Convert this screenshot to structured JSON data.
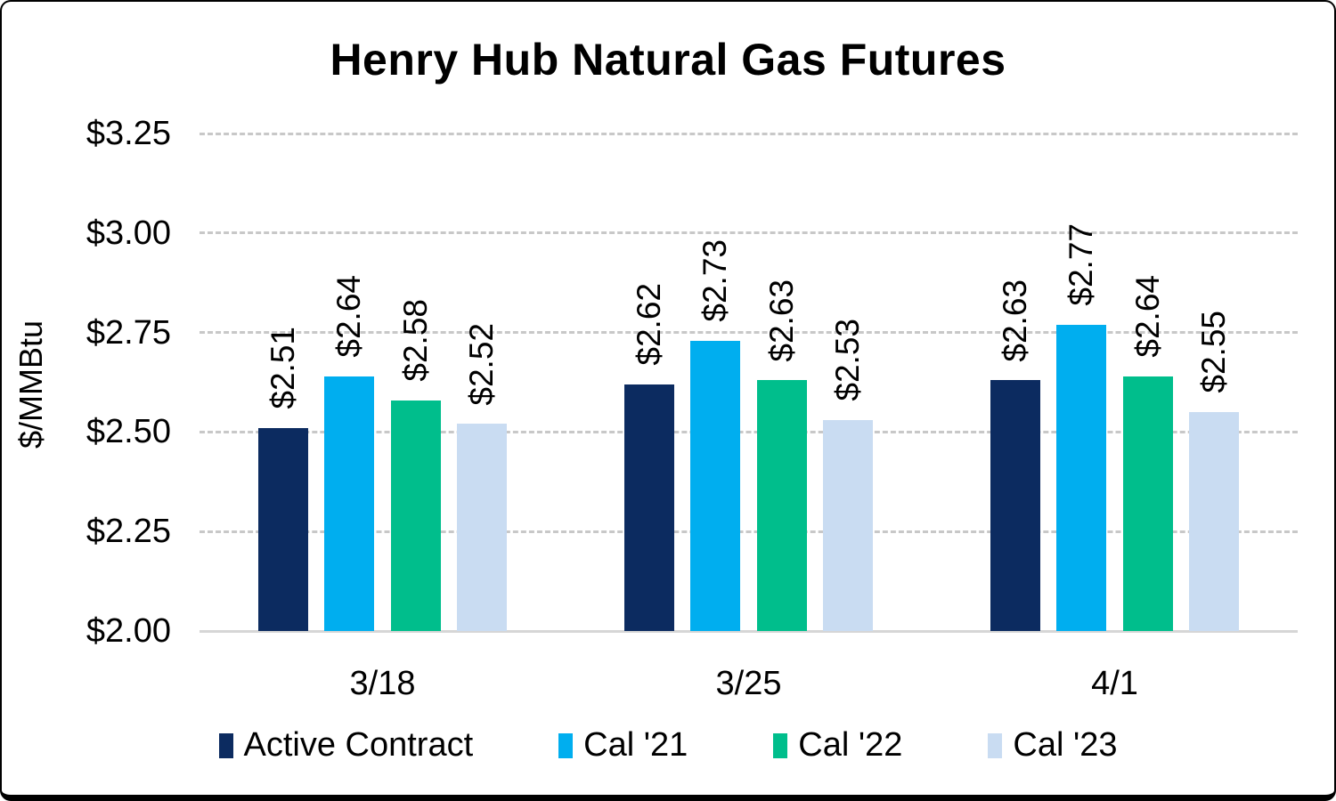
{
  "title": "Henry Hub Natural Gas Futures",
  "accent_colors": {
    "navy": "#0c2b60",
    "cyan": "#00aeef",
    "green": "#00be8c",
    "pale_blue": "#c9dcf2",
    "gridline_gray": "#c8c8c8",
    "axis_gray": "#d6d6d6"
  },
  "chart_data": {
    "type": "bar",
    "title": "Henry Hub Natural Gas Futures",
    "xlabel": "",
    "ylabel": "$/MMBtu",
    "categories": [
      "3/18",
      "3/25",
      "4/1"
    ],
    "series": [
      {
        "name": "Active Contract",
        "color": "#0c2b60",
        "values": [
          2.51,
          2.62,
          2.63
        ],
        "labels": [
          "$2.51",
          "$2.62",
          "$2.63"
        ]
      },
      {
        "name": "Cal '21",
        "color": "#00aeef",
        "values": [
          2.64,
          2.73,
          2.77
        ],
        "labels": [
          "$2.64",
          "$2.73",
          "$2.77"
        ]
      },
      {
        "name": "Cal '22",
        "color": "#00be8c",
        "values": [
          2.58,
          2.63,
          2.64
        ],
        "labels": [
          "$2.58",
          "$2.63",
          "$2.64"
        ]
      },
      {
        "name": "Cal '23",
        "color": "#c9dcf2",
        "values": [
          2.52,
          2.53,
          2.55
        ],
        "labels": [
          "$2.52",
          "$2.53",
          "$2.55"
        ]
      }
    ],
    "y_ticks": [
      {
        "value": 2.0,
        "label": "$2.00"
      },
      {
        "value": 2.25,
        "label": "$2.25"
      },
      {
        "value": 2.5,
        "label": "$2.50"
      },
      {
        "value": 2.75,
        "label": "$2.75"
      },
      {
        "value": 3.0,
        "label": "$3.00"
      },
      {
        "value": 3.25,
        "label": "$3.25"
      }
    ],
    "ylim": [
      2.0,
      3.25
    ],
    "grid": "horizontal-dashed",
    "legend_position": "bottom",
    "data_label_rotation": 90
  }
}
